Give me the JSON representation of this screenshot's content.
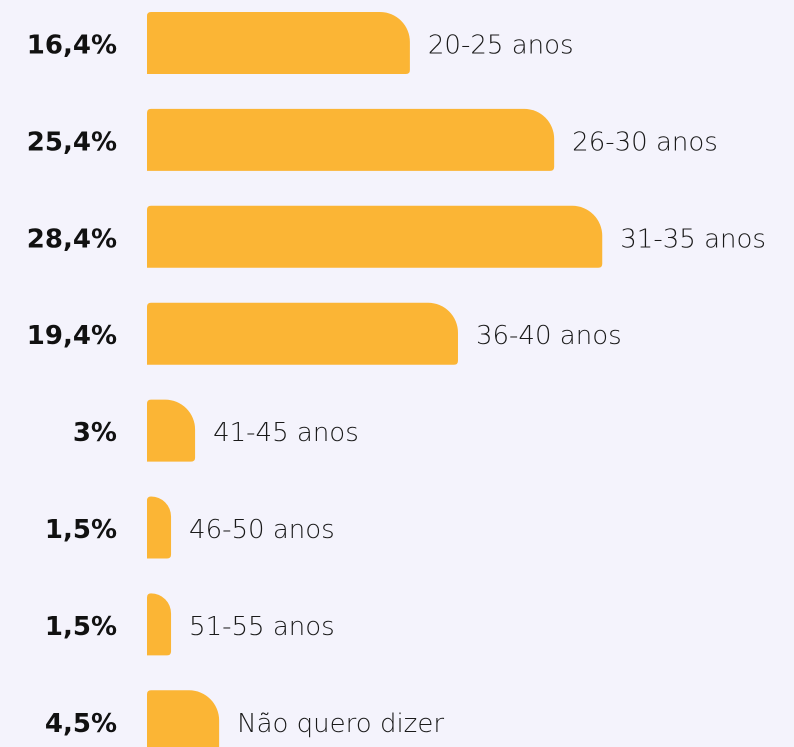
{
  "chart_data": {
    "type": "bar",
    "orientation": "horizontal",
    "categories": [
      "20-25 anos",
      "26-30 anos",
      "31-35 anos",
      "36-40 anos",
      "41-45 anos",
      "46-50 anos",
      "51-55 anos",
      "Não quero dizer"
    ],
    "values": [
      16.4,
      25.4,
      28.4,
      19.4,
      3,
      1.5,
      1.5,
      4.5
    ],
    "value_labels": [
      "16,4%",
      "25,4%",
      "28,4%",
      "19,4%",
      "3%",
      "1,5%",
      "1,5%",
      "4,5%"
    ],
    "color": "#fbb535"
  }
}
